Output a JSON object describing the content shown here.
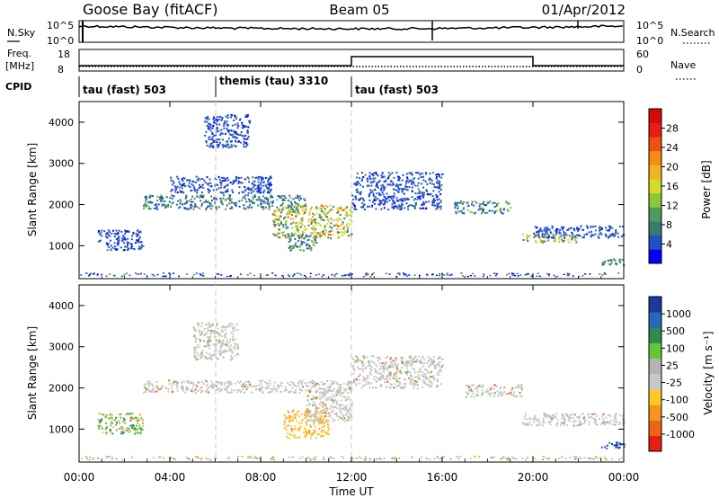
{
  "header": {
    "station": "Goose Bay (fitACF)",
    "beam": "Beam 05",
    "date": "01/Apr/2012"
  },
  "params": {
    "nsky_label": "N.Sky",
    "nsearch_label": "N.Search",
    "freq_label_line1": "Freq.",
    "freq_label_line2": "[MHz]",
    "nave_label": "Nave",
    "cpid_label": "CPID",
    "noise_ticks": [
      "10^5",
      "10^0"
    ],
    "freq_ticks": [
      "18",
      "8"
    ],
    "nave_ticks": [
      "60",
      "0"
    ]
  },
  "cpid_segments": [
    {
      "label": "tau (fast) 503",
      "start_hour": 0
    },
    {
      "label": "themis (tau) 3310",
      "start_hour": 6
    },
    {
      "label": "tau (fast) 503",
      "start_hour": 12
    }
  ],
  "chart_data": [
    {
      "type": "heatmap",
      "name": "power",
      "ylabel": "Slant Range [km]",
      "y_ticks": [
        "1000",
        "2000",
        "3000",
        "4000"
      ],
      "ylim": [
        200,
        4500
      ],
      "xlim": [
        0,
        24
      ],
      "colorbar": {
        "label": "Power [dB]",
        "ticks": [
          "4",
          "8",
          "12",
          "16",
          "20",
          "24",
          "28"
        ],
        "colors": [
          "#0000ff",
          "#2050c8",
          "#3a7c6c",
          "#4e9a5c",
          "#8cc83c",
          "#d2dc28",
          "#f0b41e",
          "#f58c14",
          "#f05014",
          "#e61e14",
          "#d20a0a"
        ]
      },
      "regions": [
        {
          "t": [
            0.8,
            2.8
          ],
          "r": [
            900,
            1400
          ],
          "level": "low"
        },
        {
          "t": [
            2.8,
            10.0
          ],
          "r": [
            1900,
            2250
          ],
          "level": "mid"
        },
        {
          "t": [
            4.0,
            8.5
          ],
          "r": [
            2300,
            2700
          ],
          "level": "low"
        },
        {
          "t": [
            5.5,
            7.5
          ],
          "r": [
            3400,
            4200
          ],
          "level": "low"
        },
        {
          "t": [
            8.5,
            12.0
          ],
          "r": [
            1200,
            2000
          ],
          "level": "high"
        },
        {
          "t": [
            9.2,
            10.5
          ],
          "r": [
            900,
            1300
          ],
          "level": "mid"
        },
        {
          "t": [
            12.0,
            16.0
          ],
          "r": [
            1900,
            2800
          ],
          "level": "low"
        },
        {
          "t": [
            16.5,
            19.0
          ],
          "r": [
            1800,
            2100
          ],
          "level": "mid"
        },
        {
          "t": [
            19.5,
            22.0
          ],
          "r": [
            1100,
            1300
          ],
          "level": "high"
        },
        {
          "t": [
            20.0,
            24.0
          ],
          "r": [
            1200,
            1500
          ],
          "level": "low"
        },
        {
          "t": [
            23.0,
            24.0
          ],
          "r": [
            550,
            700
          ],
          "level": "mid"
        }
      ]
    },
    {
      "type": "heatmap",
      "name": "velocity",
      "ylabel": "Slant Range [km]",
      "y_ticks": [
        "1000",
        "2000",
        "3000",
        "4000"
      ],
      "ylim": [
        200,
        4500
      ],
      "xlim": [
        0,
        24
      ],
      "colorbar": {
        "label": "Velocity [m s⁻¹]",
        "ticks": [
          "1000",
          "500",
          "100",
          "25",
          "-25",
          "-100",
          "-500",
          "-1000"
        ],
        "colors": [
          "#1a3aa0",
          "#2b66b8",
          "#2c8c4e",
          "#66c43a",
          "#b4b4b4",
          "#c8c8c8",
          "#ffc828",
          "#f5961e",
          "#ee6414",
          "#e61e14"
        ]
      },
      "regions": [
        {
          "t": [
            0.8,
            2.8
          ],
          "r": [
            900,
            1400
          ],
          "level": "mixed"
        },
        {
          "t": [
            2.8,
            12.0
          ],
          "r": [
            1900,
            2200
          ],
          "level": "gray"
        },
        {
          "t": [
            5.0,
            7.0
          ],
          "r": [
            2700,
            3600
          ],
          "level": "gray"
        },
        {
          "t": [
            9.0,
            11.0
          ],
          "r": [
            800,
            1500
          ],
          "level": "orange"
        },
        {
          "t": [
            10.0,
            12.0
          ],
          "r": [
            1200,
            2000
          ],
          "level": "gray"
        },
        {
          "t": [
            12.0,
            16.0
          ],
          "r": [
            2000,
            2800
          ],
          "level": "gray"
        },
        {
          "t": [
            17.0,
            19.5
          ],
          "r": [
            1800,
            2100
          ],
          "level": "gray"
        },
        {
          "t": [
            19.5,
            24.0
          ],
          "r": [
            1100,
            1400
          ],
          "level": "gray"
        },
        {
          "t": [
            23.0,
            24.0
          ],
          "r": [
            550,
            700
          ],
          "level": "blue"
        }
      ]
    }
  ],
  "x_axis": {
    "label": "Time UT",
    "ticks": [
      "00:00",
      "04:00",
      "08:00",
      "12:00",
      "16:00",
      "20:00",
      "00:00"
    ]
  }
}
